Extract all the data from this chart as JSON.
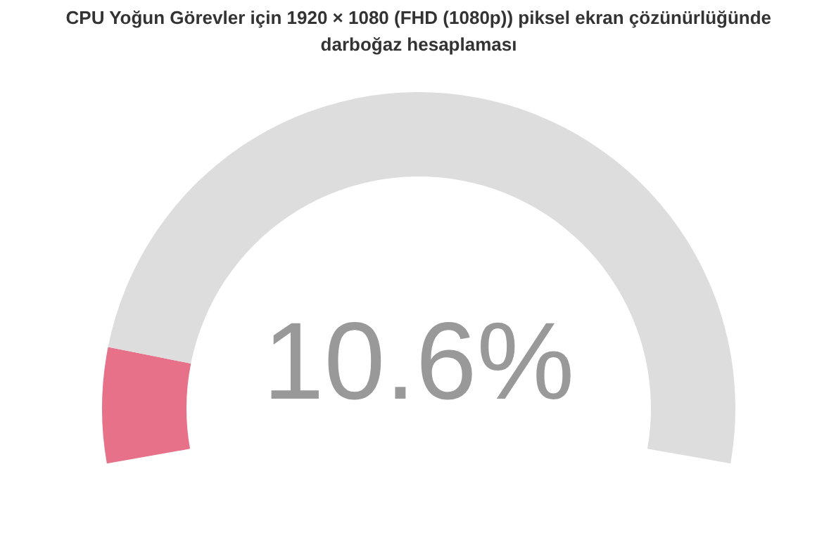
{
  "chart_data": {
    "type": "donut",
    "title": "CPU Yoğun Görevler için 1920 × 1080 (FHD (1080p)) piksel ekran çözünürlüğünde darboğaz hesaplaması",
    "categories": [
      null,
      null
    ],
    "values": [
      10.6,
      89.4
    ],
    "colors": [
      "#e8718a",
      "#dddddd"
    ],
    "annotations": [
      "10.6%"
    ]
  }
}
